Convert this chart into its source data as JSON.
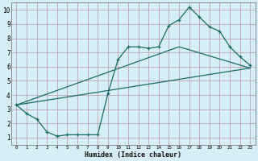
{
  "xlabel": "Humidex (Indice chaleur)",
  "xlim": [
    -0.5,
    23.5
  ],
  "ylim": [
    0.5,
    10.5
  ],
  "xticks": [
    0,
    1,
    2,
    3,
    4,
    5,
    6,
    7,
    8,
    9,
    10,
    11,
    12,
    13,
    14,
    15,
    16,
    17,
    18,
    19,
    20,
    21,
    22,
    23
  ],
  "yticks": [
    1,
    2,
    3,
    4,
    5,
    6,
    7,
    8,
    9,
    10
  ],
  "bg_color": "#d6eef5",
  "grid_color": "#c4a0b0",
  "line_color": "#1a6b6b",
  "line1_x": [
    0,
    1,
    2,
    3,
    4,
    5,
    6,
    7,
    8,
    9,
    10,
    11,
    12,
    13,
    14,
    15,
    16,
    17,
    18,
    19,
    20,
    21,
    22,
    23
  ],
  "line1_y": [
    3.3,
    2.7,
    2.3,
    1.4,
    1.1,
    1.2,
    1.2,
    1.2,
    1.2,
    4.1,
    6.5,
    7.4,
    7.4,
    7.3,
    7.4,
    8.9,
    9.3,
    10.2,
    9.5,
    8.8,
    8.5,
    7.4,
    6.7,
    6.1
  ],
  "line2_x": [
    0,
    23
  ],
  "line2_y": [
    3.3,
    5.9
  ],
  "line3_x": [
    0,
    16,
    23
  ],
  "line3_y": [
    3.3,
    7.4,
    5.9
  ]
}
